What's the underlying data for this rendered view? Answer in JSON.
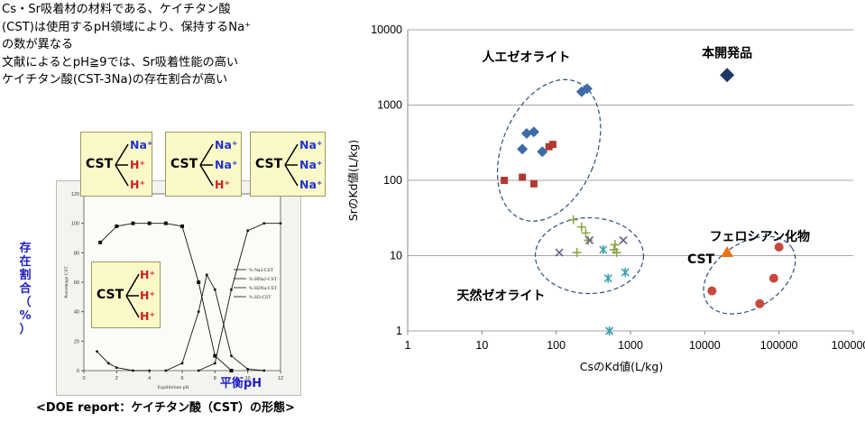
{
  "intro_lines": [
    "Cs・Sr吸着材の材料である、ケイチタン酸",
    "(CST)は使用するpH領域により、保持するNa⁺",
    "の数が異なる",
    "文献によるとpH≧9では、Sr吸着性能の高い",
    "ケイチタン酸(CST-3Na)の存在割合が高い"
  ],
  "left_figure": {
    "vertical_label_chars": [
      "存",
      "在",
      "割",
      "合",
      "（",
      "%",
      "）"
    ],
    "xlabel": "平衡pH",
    "caption": "<DOE report：ケイチタン酸（CST）の形態>",
    "inner_xaxis_label": "Equilibrium pH",
    "inner_yaxis_label": "Percentage CST",
    "inner_legend": [
      "% Na3-CST",
      "% HNa2-CST",
      "% H2Na-CST",
      "% H3-CST"
    ],
    "inner_y_ticks": [
      "0",
      "20",
      "40",
      "60",
      "80",
      "100",
      "120"
    ],
    "inner_x_ticks": [
      "0",
      "2",
      "4",
      "6",
      "8",
      "10",
      "12"
    ],
    "callouts": [
      {
        "cst": "CST",
        "ions": [
          "Na⁺",
          "H⁺",
          "H⁺"
        ],
        "colors": [
          "#2233cc",
          "#d02020",
          "#d02020"
        ]
      },
      {
        "cst": "CST",
        "ions": [
          "Na⁺",
          "Na⁺",
          "H⁺"
        ],
        "colors": [
          "#2233cc",
          "#2233cc",
          "#d02020"
        ]
      },
      {
        "cst": "CST",
        "ions": [
          "Na⁺",
          "Na⁺",
          "Na⁺"
        ],
        "colors": [
          "#2233cc",
          "#2233cc",
          "#2233cc"
        ]
      },
      {
        "cst": "CST",
        "ions": [
          "H⁺",
          "H⁺",
          "H⁺"
        ],
        "colors": [
          "#d02020",
          "#d02020",
          "#d02020"
        ]
      }
    ],
    "chart_data": {
      "type": "line",
      "xlabel": "Equilibrium pH",
      "ylabel": "Percentage CST",
      "xlim": [
        0,
        12
      ],
      "ylim": [
        0,
        120
      ],
      "series": [
        {
          "name": "% Na3-CST",
          "x": [
            7,
            8,
            9,
            10,
            11,
            12
          ],
          "y": [
            0,
            5,
            55,
            95,
            100,
            100
          ]
        },
        {
          "name": "% HNa2-CST",
          "x": [
            5,
            6,
            7,
            7.5,
            8,
            9,
            10,
            11
          ],
          "y": [
            0,
            5,
            40,
            65,
            55,
            10,
            1,
            0
          ]
        },
        {
          "name": "% H2Na-CST",
          "x": [
            1,
            2,
            3,
            4,
            5,
            6,
            7,
            8,
            9
          ],
          "y": [
            87,
            98,
            100,
            100,
            100,
            98,
            60,
            10,
            0
          ]
        },
        {
          "name": "% H3-CST",
          "x": [
            0.8,
            1.5,
            2,
            3,
            4
          ],
          "y": [
            13,
            5,
            2,
            0,
            0
          ]
        }
      ]
    }
  },
  "main_chart": {
    "xlabel": "CsのKd値(L/kg)",
    "ylabel": "SrのKd値(L/kg)",
    "x_ticks": [
      "1",
      "10",
      "100",
      "1000",
      "10000",
      "100000",
      "1000000"
    ],
    "y_ticks": [
      "1",
      "10",
      "100",
      "1000",
      "10000"
    ],
    "annotations": {
      "product": "本開発品",
      "synthetic": "人エゼオライト",
      "natural": "天然ゼオライト",
      "ferrocyanide": "フェロシアン化物",
      "cst": "CST"
    },
    "colors": {
      "blue_diamond": "#3d6aa8",
      "red_square": "#b03a32",
      "green_plus": "#8aa640",
      "purple_x": "#6a5a8a",
      "teal_star": "#3aa0b0",
      "orange_triangle": "#e8741a",
      "red_circle": "#c9483e",
      "navy_diamond": "#1f3766",
      "ellipse": "#2c4d7e",
      "grid": "#a6a6a6"
    }
  },
  "chart_data": {
    "type": "scatter",
    "xscale": "log",
    "yscale": "log",
    "xlabel": "CsのKd値(L/kg)",
    "ylabel": "SrのKd値(L/kg)",
    "xlim": [
      1,
      1000000
    ],
    "ylim": [
      1,
      10000
    ],
    "grid": "horizontal",
    "series": [
      {
        "name": "本開発品",
        "marker": "diamond",
        "color": "#1f3766",
        "points": [
          [
            20000,
            2500
          ]
        ]
      },
      {
        "marker": "diamond",
        "color": "#3d6aa8",
        "points": [
          [
            35,
            260
          ],
          [
            40,
            420
          ],
          [
            50,
            440
          ],
          [
            65,
            240
          ],
          [
            220,
            1500
          ],
          [
            260,
            1650
          ]
        ]
      },
      {
        "marker": "square",
        "color": "#b03a32",
        "points": [
          [
            20,
            100
          ],
          [
            35,
            110
          ],
          [
            50,
            90
          ],
          [
            80,
            280
          ],
          [
            90,
            300
          ]
        ]
      },
      {
        "marker": "plus",
        "color": "#8aa640",
        "points": [
          [
            170,
            30
          ],
          [
            190,
            11
          ],
          [
            220,
            24
          ],
          [
            250,
            20
          ],
          [
            270,
            16
          ],
          [
            600,
            12
          ],
          [
            650,
            11
          ],
          [
            620,
            14
          ]
        ]
      },
      {
        "marker": "x",
        "color": "#6a5a8a",
        "points": [
          [
            110,
            11
          ],
          [
            280,
            16
          ],
          [
            800,
            16
          ]
        ]
      },
      {
        "marker": "star",
        "color": "#3aa0b0",
        "points": [
          [
            430,
            12
          ],
          [
            500,
            5
          ],
          [
            850,
            6
          ],
          [
            520,
            1
          ]
        ]
      },
      {
        "name": "CST",
        "marker": "triangle",
        "color": "#e8741a",
        "points": [
          [
            20000,
            11
          ]
        ]
      },
      {
        "name": "フェロシアン化物",
        "marker": "circle",
        "color": "#c9483e",
        "points": [
          [
            12500,
            3.4
          ],
          [
            55000,
            2.3
          ],
          [
            85000,
            5
          ],
          [
            100000,
            13
          ]
        ]
      }
    ]
  }
}
